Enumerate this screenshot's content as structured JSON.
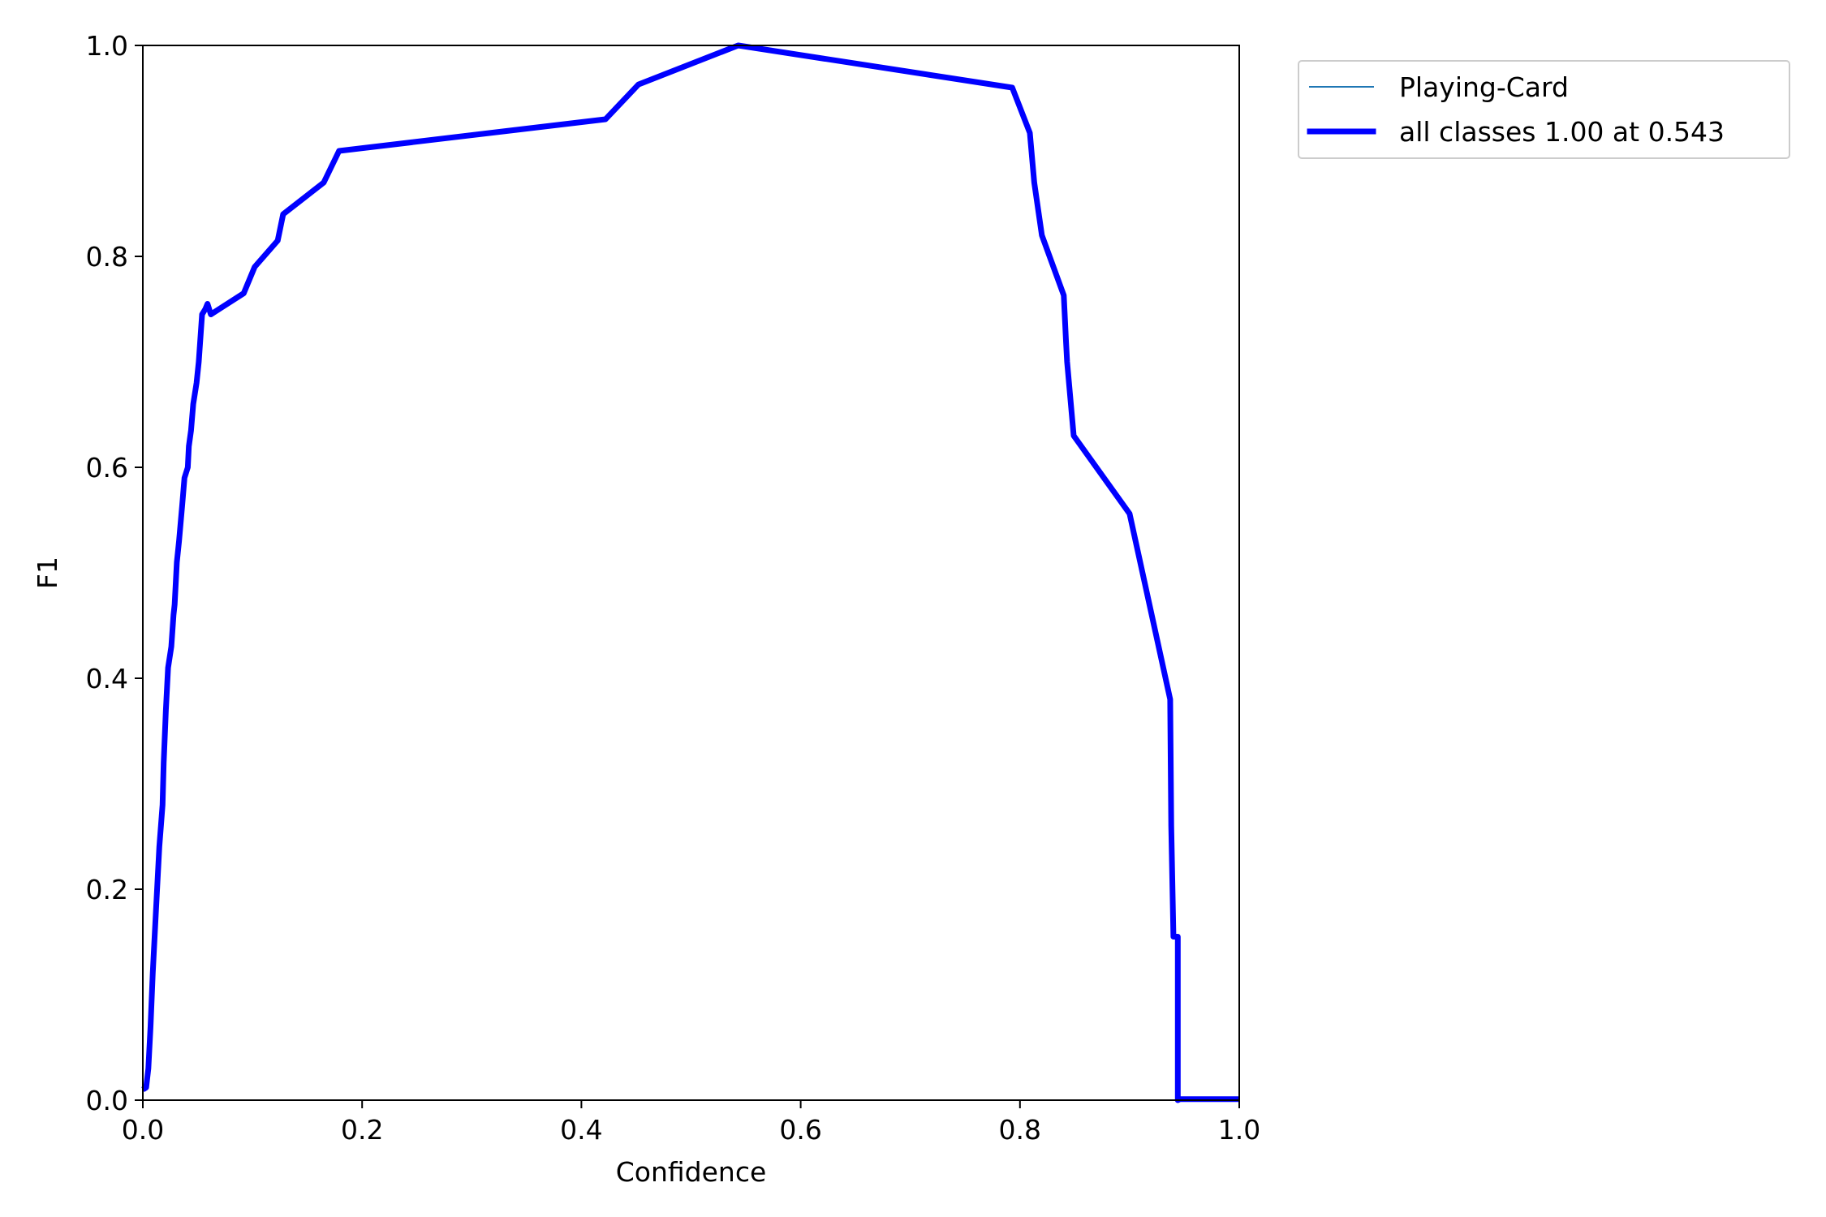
{
  "chart_data": {
    "type": "line",
    "title": "",
    "xlabel": "Confidence",
    "ylabel": "F1",
    "xlim": [
      0,
      1
    ],
    "ylim": [
      0,
      1
    ],
    "grid": false,
    "legend_position": "outside-top-right",
    "x_ticks": [
      "0.0",
      "0.2",
      "0.4",
      "0.6",
      "0.8",
      "1.0"
    ],
    "y_ticks": [
      "0.0",
      "0.2",
      "0.4",
      "0.6",
      "0.8",
      "1.0"
    ],
    "series": [
      {
        "name": "Playing-Card",
        "color": "#1f77b4",
        "style": "thin",
        "x": [
          0.0,
          0.003,
          0.005,
          0.007,
          0.009,
          0.012,
          0.015,
          0.018,
          0.019,
          0.021,
          0.023,
          0.026,
          0.028,
          0.029,
          0.031,
          0.033,
          0.036,
          0.038,
          0.041,
          0.042,
          0.044,
          0.046,
          0.049,
          0.051,
          0.054,
          0.057,
          0.059,
          0.062,
          0.092,
          0.102,
          0.123,
          0.128,
          0.165,
          0.179,
          0.422,
          0.452,
          0.543,
          0.793,
          0.809,
          0.813,
          0.82,
          0.84,
          0.842,
          0.843,
          0.849,
          0.9,
          0.937,
          0.938,
          0.94,
          0.944,
          0.944,
          0.946,
          1.0
        ],
        "y": [
          0.01,
          0.012,
          0.03,
          0.07,
          0.12,
          0.18,
          0.24,
          0.28,
          0.32,
          0.37,
          0.41,
          0.43,
          0.46,
          0.47,
          0.51,
          0.53,
          0.565,
          0.59,
          0.6,
          0.62,
          0.635,
          0.66,
          0.68,
          0.7,
          0.745,
          0.75,
          0.755,
          0.745,
          0.765,
          0.79,
          0.815,
          0.84,
          0.87,
          0.9,
          0.93,
          0.963,
          1.0,
          0.96,
          0.917,
          0.87,
          0.82,
          0.763,
          0.72,
          0.7,
          0.63,
          0.556,
          0.38,
          0.26,
          0.155,
          0.155,
          0.0,
          0.001,
          0.001
        ]
      },
      {
        "name": "all classes 1.00 at 0.543",
        "color": "#0000ff",
        "style": "thick",
        "x": [
          0.0,
          0.003,
          0.005,
          0.007,
          0.009,
          0.012,
          0.015,
          0.018,
          0.019,
          0.021,
          0.023,
          0.026,
          0.028,
          0.029,
          0.031,
          0.033,
          0.036,
          0.038,
          0.041,
          0.042,
          0.044,
          0.046,
          0.049,
          0.051,
          0.054,
          0.057,
          0.059,
          0.062,
          0.092,
          0.102,
          0.123,
          0.128,
          0.165,
          0.179,
          0.422,
          0.452,
          0.543,
          0.793,
          0.809,
          0.813,
          0.82,
          0.84,
          0.842,
          0.843,
          0.849,
          0.9,
          0.937,
          0.938,
          0.94,
          0.944,
          0.944,
          0.946,
          1.0
        ],
        "y": [
          0.01,
          0.012,
          0.03,
          0.07,
          0.12,
          0.18,
          0.24,
          0.28,
          0.32,
          0.37,
          0.41,
          0.43,
          0.46,
          0.47,
          0.51,
          0.53,
          0.565,
          0.59,
          0.6,
          0.62,
          0.635,
          0.66,
          0.68,
          0.7,
          0.745,
          0.75,
          0.755,
          0.745,
          0.765,
          0.79,
          0.815,
          0.84,
          0.87,
          0.9,
          0.93,
          0.963,
          1.0,
          0.96,
          0.917,
          0.87,
          0.82,
          0.763,
          0.72,
          0.7,
          0.63,
          0.556,
          0.38,
          0.26,
          0.155,
          0.155,
          0.0,
          0.001,
          0.001
        ]
      }
    ]
  }
}
